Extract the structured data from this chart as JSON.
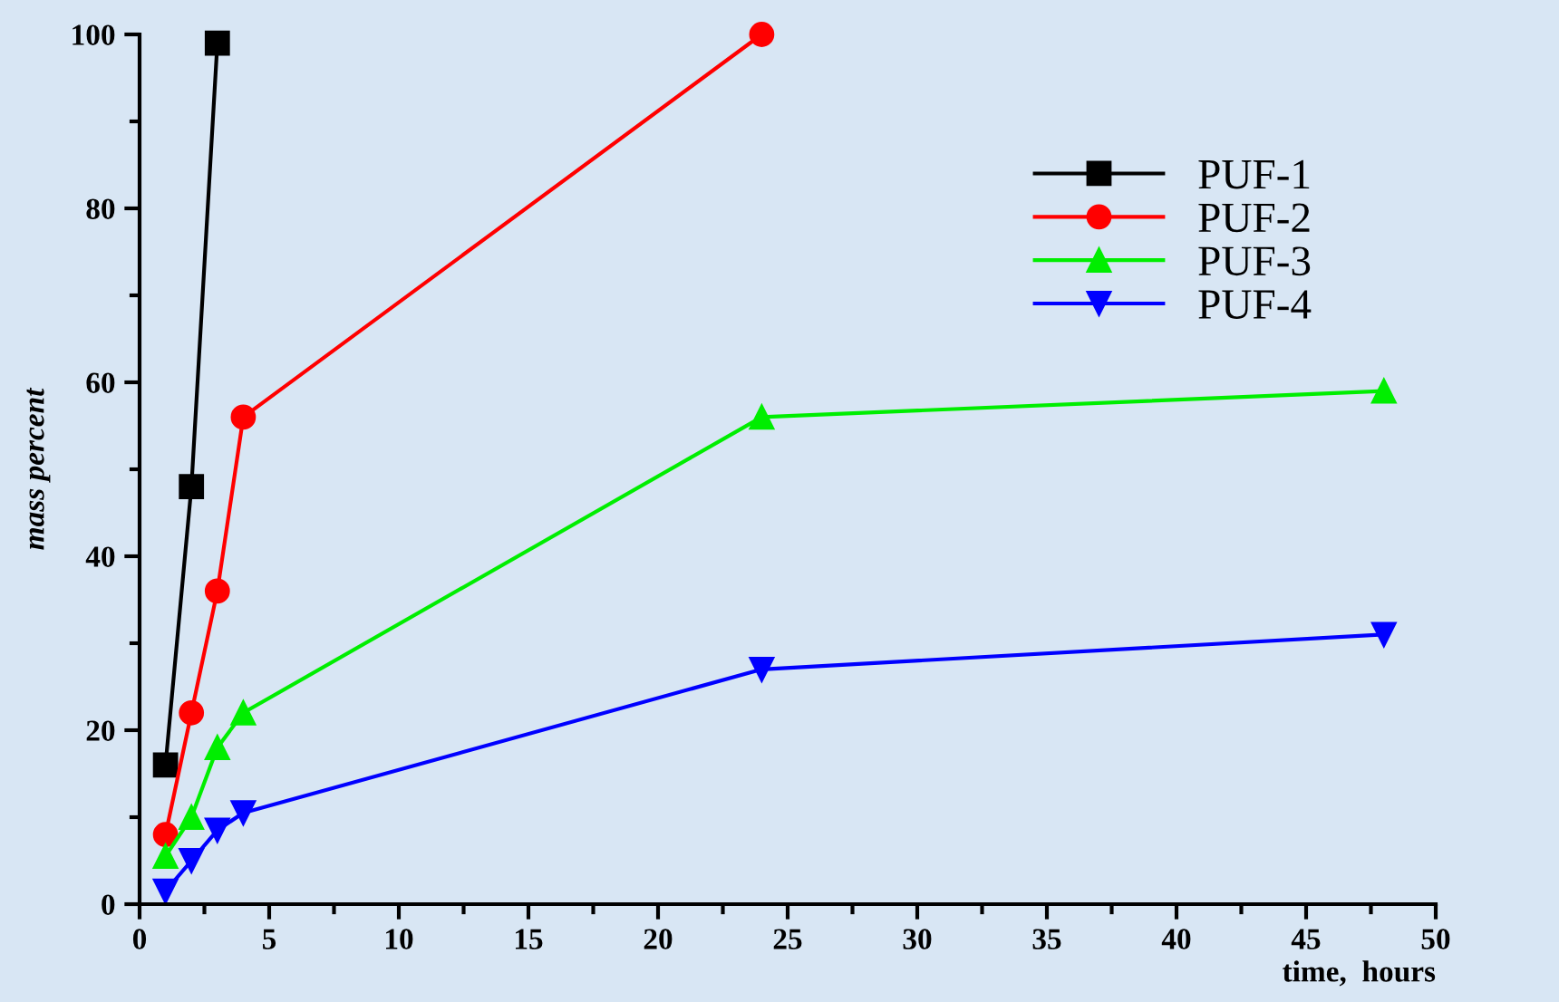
{
  "chart_data": {
    "type": "line",
    "xlabel": "time,  hours",
    "ylabel": "mass percent",
    "xlim": [
      0,
      50
    ],
    "xticks": [
      0,
      5,
      10,
      15,
      20,
      25,
      30,
      35,
      40,
      45,
      50
    ],
    "ylim": [
      0,
      100
    ],
    "yticks": [
      0,
      20,
      40,
      60,
      80,
      100
    ],
    "grid": false,
    "legend": "top right",
    "series": [
      {
        "name": "PUF-1",
        "color": "#000000",
        "marker": "square",
        "x": [
          1,
          2,
          3
        ],
        "values": [
          16,
          48,
          99
        ]
      },
      {
        "name": "PUF-2",
        "color": "#ff0000",
        "marker": "circle",
        "x": [
          1,
          2,
          3,
          4,
          24
        ],
        "values": [
          8,
          22,
          36,
          56,
          100
        ]
      },
      {
        "name": "PUF-3",
        "color": "#00ee00",
        "marker": "triangle",
        "x": [
          1,
          2,
          3,
          4,
          24,
          48
        ],
        "values": [
          5.5,
          10,
          18,
          22,
          56,
          59
        ]
      },
      {
        "name": "PUF-4",
        "color": "#0000ff",
        "marker": "triangle_down",
        "x": [
          1,
          2,
          3,
          4,
          24,
          48
        ],
        "values": [
          1.5,
          5,
          8.5,
          10.5,
          27,
          31
        ]
      }
    ]
  }
}
